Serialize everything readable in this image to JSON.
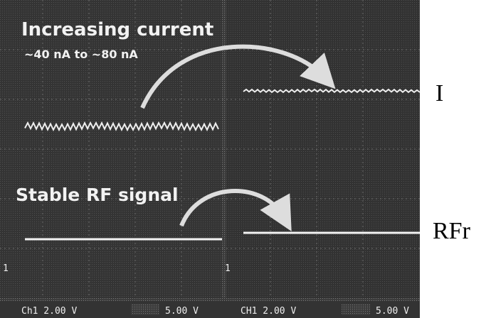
{
  "annotations": {
    "top_title": "Increasing current",
    "top_subtitle": "~40 nA to ~80 nA",
    "bottom_title": "Stable RF signal"
  },
  "side_labels": {
    "top": "I",
    "bottom": "RFr"
  },
  "channel_markers": {
    "left": "1",
    "right": "1"
  },
  "status_bar": {
    "left_channel": "Ch1  2.00 V",
    "left_time": "5.00 V",
    "right_channel": "CH1  2.00 V",
    "right_time": "5.00 V"
  }
}
